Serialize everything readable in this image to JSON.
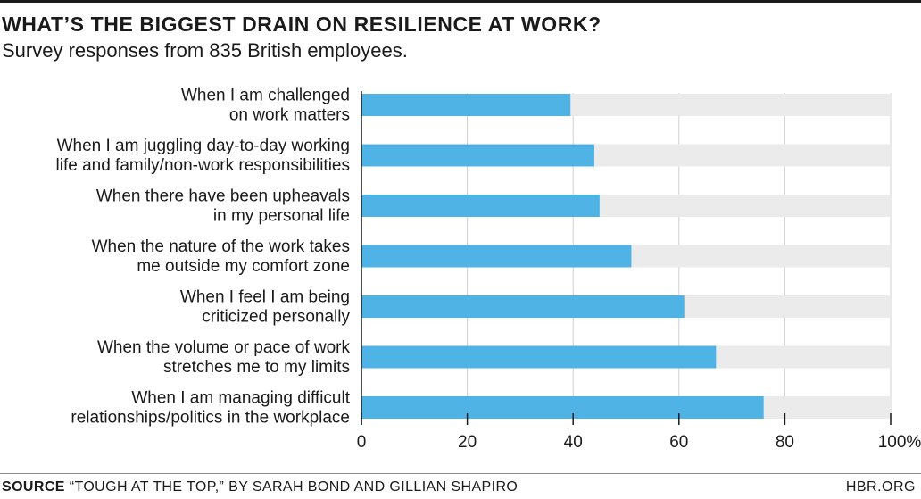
{
  "header": {
    "title": "WHAT’S THE BIGGEST DRAIN ON RESILIENCE AT WORK?",
    "subtitle": "Survey responses from 835 British employees."
  },
  "footer": {
    "source_label": "SOURCE",
    "source_text": "“TOUGH AT THE TOP,” BY SARAH BOND AND GILLIAN SHAPIRO",
    "brand": "HBR.ORG"
  },
  "colors": {
    "bar": "#4fb3e6",
    "track": "#ebebeb",
    "grid": "#d0d0d0",
    "axis": "#1a1a1a"
  },
  "chart_data": {
    "type": "bar",
    "orientation": "horizontal",
    "title": "WHAT’S THE BIGGEST DRAIN ON RESILIENCE AT WORK?",
    "subtitle": "Survey responses from 835 British employees.",
    "categories": [
      [
        "When I am challenged",
        "on work matters"
      ],
      [
        "When I am juggling day-to-day working",
        "life and family/non-work responsibilities"
      ],
      [
        "When there have been upheavals",
        "in my personal life"
      ],
      [
        "When the nature of the work takes",
        "me outside my comfort zone"
      ],
      [
        "When I feel I am being",
        "criticized personally"
      ],
      [
        "When the volume or pace of work",
        "stretches me to my limits"
      ],
      [
        "When I am managing difficult",
        "relationships/politics in the workplace"
      ]
    ],
    "values": [
      39.5,
      44,
      45,
      51,
      61,
      67,
      76
    ],
    "xlim": [
      0,
      100
    ],
    "ticks": [
      0,
      20,
      40,
      60,
      80,
      100
    ],
    "tick_labels": [
      "0",
      "20",
      "40",
      "60",
      "80",
      "100%"
    ],
    "grid": true,
    "background_track": true
  }
}
